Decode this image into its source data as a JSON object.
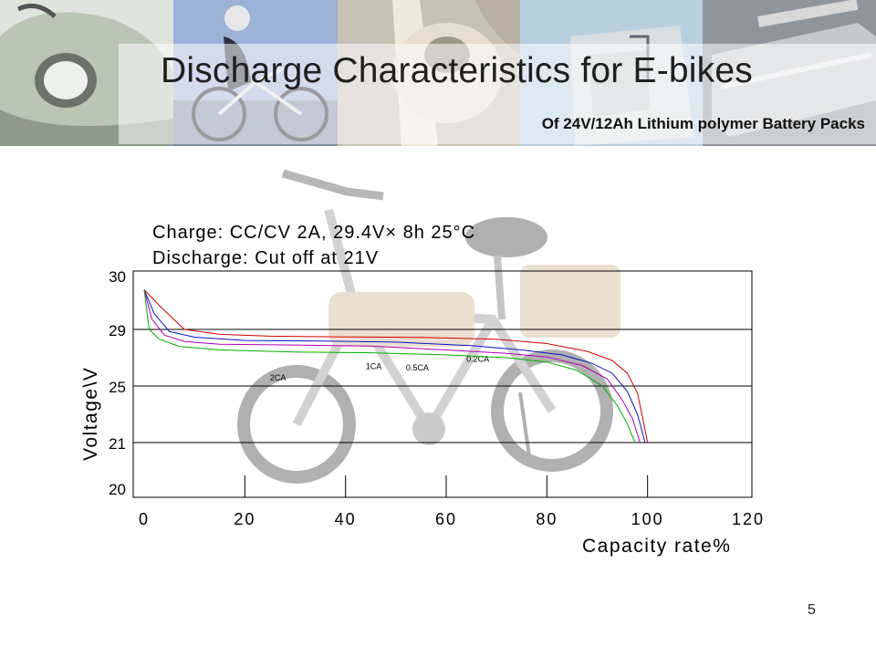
{
  "header": {
    "title": "Discharge Characteristics for E-bikes",
    "subtitle": "Of 24V/12Ah Lithium polymer Battery Packs"
  },
  "slide_number": "5",
  "chart_data": {
    "type": "line",
    "title": "",
    "notes": [
      "Charge: CC/CV 2A, 29.4V× 8h   25°C",
      "Discharge: Cut off at 21V"
    ],
    "xlabel": "Capacity rate%",
    "ylabel": "Voltage\\V",
    "xlim": [
      0,
      120
    ],
    "x_ticks": [
      0,
      20,
      40,
      60,
      80,
      100,
      120
    ],
    "y_tick_labels": [
      "30",
      "29",
      "25",
      "21",
      "20"
    ],
    "grid": "horizontal",
    "series": [
      {
        "name": "0.2CA",
        "color": "#d40000",
        "label_at": [
          64,
          26.7
        ],
        "points": [
          [
            0,
            29.75
          ],
          [
            3,
            29.45
          ],
          [
            8,
            29.0
          ],
          [
            15,
            28.65
          ],
          [
            25,
            28.52
          ],
          [
            40,
            28.47
          ],
          [
            55,
            28.44
          ],
          [
            70,
            28.3
          ],
          [
            80,
            28.0
          ],
          [
            88,
            27.45
          ],
          [
            93,
            26.8
          ],
          [
            96,
            25.9
          ],
          [
            98,
            24.5
          ],
          [
            99,
            22.8
          ],
          [
            100,
            21.0
          ]
        ]
      },
      {
        "name": "0.5CA",
        "color": "#1010c8",
        "label_at": [
          52,
          26.1
        ],
        "points": [
          [
            0,
            29.75
          ],
          [
            2,
            29.3
          ],
          [
            5,
            28.85
          ],
          [
            10,
            28.45
          ],
          [
            20,
            28.22
          ],
          [
            35,
            28.18
          ],
          [
            50,
            28.1
          ],
          [
            65,
            27.85
          ],
          [
            75,
            27.55
          ],
          [
            83,
            27.2
          ],
          [
            89,
            26.6
          ],
          [
            93,
            25.9
          ],
          [
            96,
            24.6
          ],
          [
            98,
            23.0
          ],
          [
            99.5,
            21.0
          ]
        ]
      },
      {
        "name": "1CA",
        "color": "#b000b0",
        "label_at": [
          44,
          26.2
        ],
        "points": [
          [
            0,
            29.75
          ],
          [
            1.5,
            29.2
          ],
          [
            4,
            28.6
          ],
          [
            8,
            28.15
          ],
          [
            15,
            27.95
          ],
          [
            30,
            27.9
          ],
          [
            45,
            27.82
          ],
          [
            60,
            27.55
          ],
          [
            72,
            27.3
          ],
          [
            80,
            27.05
          ],
          [
            87,
            26.45
          ],
          [
            92,
            25.5
          ],
          [
            95,
            24.0
          ],
          [
            97,
            22.7
          ],
          [
            98.5,
            21.0
          ]
        ]
      },
      {
        "name": "2CA",
        "color": "#00b000",
        "label_at": [
          25,
          25.4
        ],
        "points": [
          [
            0,
            29.75
          ],
          [
            1,
            29.0
          ],
          [
            3,
            28.3
          ],
          [
            7,
            27.8
          ],
          [
            15,
            27.55
          ],
          [
            30,
            27.4
          ],
          [
            45,
            27.35
          ],
          [
            60,
            27.2
          ],
          [
            72,
            27.0
          ],
          [
            80,
            26.7
          ],
          [
            86,
            26.1
          ],
          [
            91,
            25.0
          ],
          [
            94,
            23.6
          ],
          [
            96,
            22.3
          ],
          [
            97.5,
            21.0
          ]
        ]
      }
    ]
  }
}
